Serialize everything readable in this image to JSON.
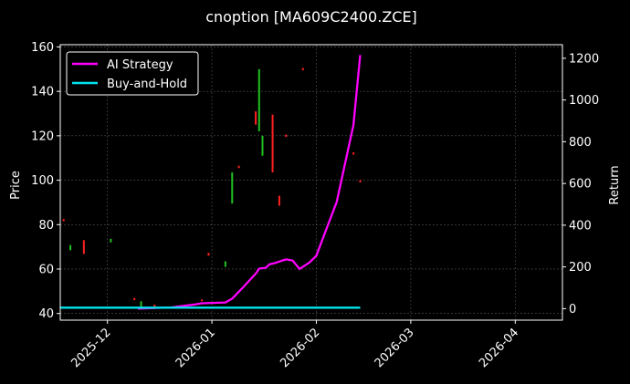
{
  "chart_data": {
    "type": "line",
    "title": "cnoption [MA609C2400.ZCE]",
    "xlabel": "",
    "ylabel_left": "Price",
    "ylabel_right": "Return",
    "x_ticks": [
      "2025-12",
      "2026-01",
      "2026-02",
      "2026-03",
      "2026-04"
    ],
    "x_range": [
      "2025-11-17",
      "2026-04-15"
    ],
    "y_left_ticks": [
      40,
      60,
      80,
      100,
      120,
      140,
      160
    ],
    "y_left_range": [
      37,
      161
    ],
    "y_right_ticks": [
      0,
      200,
      400,
      600,
      800,
      1000,
      1200
    ],
    "y_right_range": [
      -55,
      1265
    ],
    "grid": true,
    "legend": "upper-left",
    "colors": {
      "strategy": "#ff00ff",
      "buyhold": "#00e5ee",
      "up": "#ff2020",
      "down": "#20c020",
      "grid": "#555555",
      "background": "#000000"
    },
    "series": [
      {
        "name": "AI Strategy",
        "axis": "right",
        "x": [
          "2025-12-10",
          "2025-12-20",
          "2025-12-27",
          "2025-12-29",
          "2026-01-05",
          "2026-01-07",
          "2026-01-10",
          "2026-01-14",
          "2026-01-15",
          "2026-01-17",
          "2026-01-18",
          "2026-01-20",
          "2026-01-21",
          "2026-01-23",
          "2026-01-25",
          "2026-01-27",
          "2026-01-30",
          "2026-02-01",
          "2026-02-03",
          "2026-02-05",
          "2026-02-07",
          "2026-02-12",
          "2026-02-14"
        ],
        "values": [
          0,
          6,
          20,
          26,
          30,
          48,
          98,
          168,
          192,
          196,
          212,
          220,
          226,
          236,
          230,
          190,
          222,
          254,
          340,
          426,
          510,
          880,
          1215
        ]
      },
      {
        "name": "Buy-and-Hold",
        "axis": "right",
        "x": [
          "2025-11-17",
          "2026-02-14"
        ],
        "values": [
          5,
          5
        ]
      }
    ],
    "candles": [
      {
        "x": "2025-11-18",
        "low": 81.5,
        "high": 82.5,
        "dir": "up"
      },
      {
        "x": "2025-11-20",
        "low": 68.5,
        "high": 70.8,
        "dir": "down"
      },
      {
        "x": "2025-11-24",
        "low": 66.8,
        "high": 73,
        "dir": "up"
      },
      {
        "x": "2025-12-02",
        "low": 72,
        "high": 73.6,
        "dir": "down"
      },
      {
        "x": "2025-12-09",
        "low": 46,
        "high": 47,
        "dir": "up"
      },
      {
        "x": "2025-12-11",
        "low": 42.5,
        "high": 45.5,
        "dir": "down"
      },
      {
        "x": "2025-12-15",
        "low": 42.2,
        "high": 44,
        "dir": "up"
      },
      {
        "x": "2025-12-29",
        "low": 45.5,
        "high": 46.3,
        "dir": "up"
      },
      {
        "x": "2025-12-31",
        "low": 66,
        "high": 67.3,
        "dir": "up"
      },
      {
        "x": "2026-01-05",
        "low": 61,
        "high": 63.5,
        "dir": "down"
      },
      {
        "x": "2026-01-07",
        "low": 89.5,
        "high": 103.5,
        "dir": "down"
      },
      {
        "x": "2026-01-09",
        "low": 105.5,
        "high": 106.5,
        "dir": "up"
      },
      {
        "x": "2026-01-14",
        "low": 125,
        "high": 131,
        "dir": "up"
      },
      {
        "x": "2026-01-15",
        "low": 122,
        "high": 150,
        "dir": "down"
      },
      {
        "x": "2026-01-16",
        "low": 111,
        "high": 120,
        "dir": "down"
      },
      {
        "x": "2026-01-19",
        "low": 103.5,
        "high": 129.5,
        "dir": "up"
      },
      {
        "x": "2026-01-21",
        "low": 88.5,
        "high": 93,
        "dir": "up"
      },
      {
        "x": "2026-01-23",
        "low": 119.5,
        "high": 120.5,
        "dir": "up"
      },
      {
        "x": "2026-01-28",
        "low": 149.5,
        "high": 150.5,
        "dir": "up"
      },
      {
        "x": "2026-02-12",
        "low": 111.5,
        "high": 112.5,
        "dir": "up"
      },
      {
        "x": "2026-02-14",
        "low": 99,
        "high": 100,
        "dir": "up"
      }
    ]
  }
}
